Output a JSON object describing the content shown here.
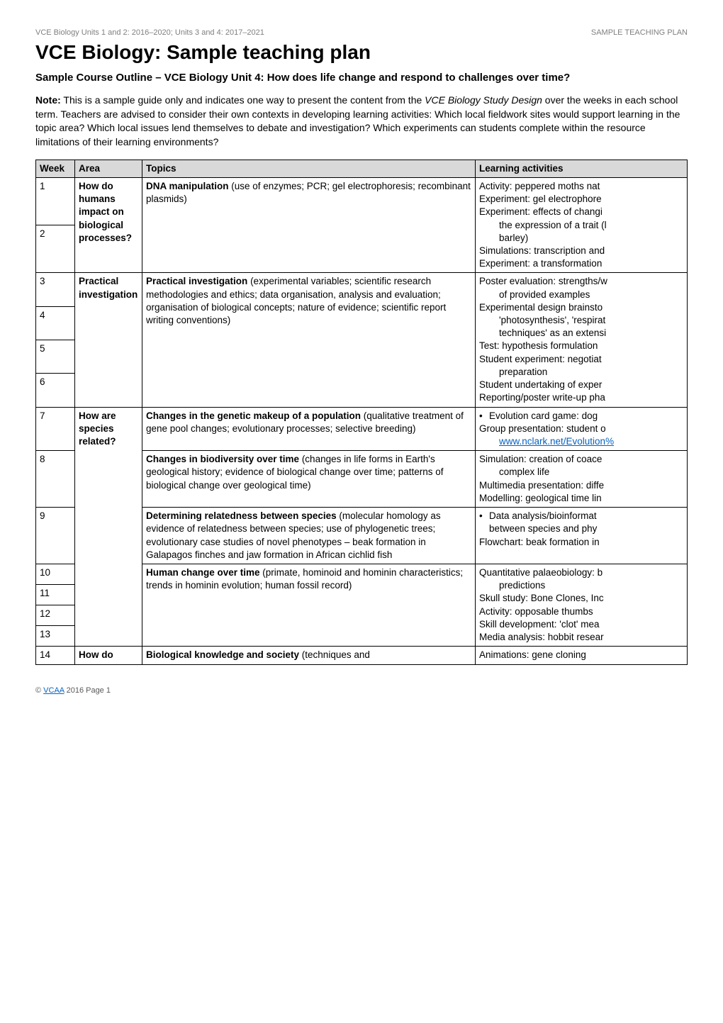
{
  "meta": {
    "left": "VCE Biology Units 1 and 2: 2016–2020; Units 3 and 4: 2017–2021",
    "right": "SAMPLE TEACHING PLAN"
  },
  "title": "VCE Biology: Sample teaching plan",
  "subtitle": "Sample Course Outline – VCE Biology Unit 4: How does life change and respond to challenges over time?",
  "note": {
    "label": "Note:",
    "pre_italic": " This is a sample guide only and indicates one way to present the content from the ",
    "italic": "VCE Biology Study Design",
    "post_italic": " over the weeks in each school term. Teachers are advised to consider their own contexts in developing learning activities: Which local fieldwork sites would support learning in the topic area? Which local issues lend themselves to debate and investigation? Which experiments can students complete within the resource limitations of their learning environments?"
  },
  "headers": {
    "week": "Week",
    "area": "Area",
    "topics": "Topics",
    "activities": "Learning activities"
  },
  "colors": {
    "header_bg": "#d9d9d9",
    "link": "#0563c1",
    "meta_grey": "#7f7f7f"
  },
  "rows": {
    "area1": "How do humans impact on biological processes?",
    "topic1_b": "DNA manipulation",
    "topic1_rest": " (use of enzymes; PCR; gel electrophoresis; recombinant plasmids)",
    "act1_l1": "Activity: peppered moths nat",
    "act1_l2": "Experiment: gel electrophore",
    "act1_l3": "Experiment: effects of changi",
    "act1_l3b": "the expression of a trait (l",
    "act1_l3c": "barley)",
    "act1_l4": "Simulations: transcription and",
    "act1_l5": "Experiment: a transformation",
    "area2": "Practical investigation",
    "topic2_b": "Practical investigation",
    "topic2_rest": " (experimental variables; scientific research methodologies and ethics; data organisation, analysis and evaluation; organisation of biological concepts; nature of evidence; scientific report writing conventions)",
    "act2_l1": "Poster evaluation: strengths/w",
    "act2_l1b": "of provided examples",
    "act2_l2": "Experimental design brainsto",
    "act2_l2b": "'photosynthesis', 'respirat",
    "act2_l2c": "techniques' as an extensi",
    "act2_l3": "Test: hypothesis formulation",
    "act2_l4": "Student experiment: negotiat",
    "act2_l4b": "preparation",
    "act2_l5": "Student undertaking of exper",
    "act2_l6": "Reporting/poster write-up pha",
    "area3": "How are species related?",
    "topic7_b": "Changes in the genetic makeup of a population",
    "topic7_rest": " (qualitative treatment of gene pool changes; evolutionary processes; selective breeding)",
    "act7_bul": "Evolution card game: dog",
    "act7_l2": "Group presentation: student o",
    "act7_link": "www.nclark.net/Evolution%",
    "topic8_b": "Changes in biodiversity over time",
    "topic8_rest": " (changes in life forms in Earth's geological history; evidence of biological change over time; patterns of biological change over geological time)",
    "act8_l1": "Simulation: creation of coace",
    "act8_l1b": "complex life",
    "act8_l2": "Multimedia presentation: diffe",
    "act8_l3": "Modelling: geological time lin",
    "topic9_b": "Determining relatedness between species",
    "topic9_rest": " (molecular homology as evidence of relatedness between species; use of phylogenetic trees; evolutionary case studies of novel phenotypes – beak formation in Galapagos finches and jaw formation in African cichlid fish",
    "act9_bul": "Data analysis/bioinformat",
    "act9_bulb": "between species and phy",
    "act9_l2": "Flowchart: beak formation in",
    "topic10_b": "Human change over time",
    "topic10_rest": " (primate, hominoid and hominin characteristics; trends in hominin evolution; human fossil record)",
    "act10_l1": "Quantitative palaeobiology: b",
    "act10_l1b": "predictions",
    "act10_l2": "Skull study: Bone Clones, Inc",
    "act10_l3": "Activity: opposable thumbs",
    "act10_l4": "Skill development: 'clot' mea",
    "act10_l5": "Media analysis: hobbit resear",
    "area4": "How do",
    "topic14_b": "Biological knowledge and society",
    "topic14_rest": " (techniques and",
    "act14_l1": "Animations: gene cloning"
  },
  "weeks": {
    "w1": "1",
    "w2": "2",
    "w3": "3",
    "w4": "4",
    "w5": "5",
    "w6": "6",
    "w7": "7",
    "w8": "8",
    "w9": "9",
    "w10": "10",
    "w11": "11",
    "w12": "12",
    "w13": "13",
    "w14": "14"
  },
  "footer": {
    "copy": "© ",
    "link_text": "VCAA",
    "year_page": " 2016     Page 1"
  }
}
